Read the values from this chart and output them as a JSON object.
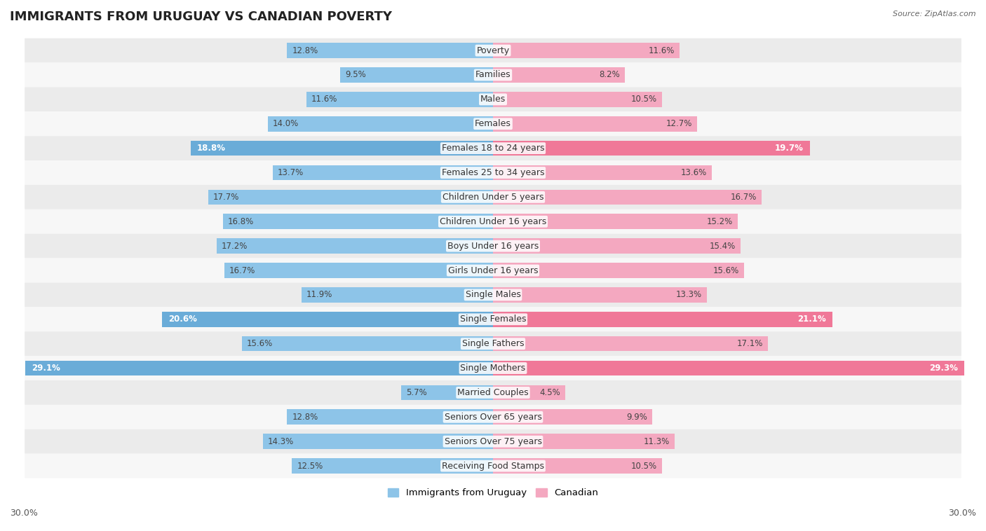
{
  "title": "IMMIGRANTS FROM URUGUAY VS CANADIAN POVERTY",
  "source": "Source: ZipAtlas.com",
  "categories": [
    "Poverty",
    "Families",
    "Males",
    "Females",
    "Females 18 to 24 years",
    "Females 25 to 34 years",
    "Children Under 5 years",
    "Children Under 16 years",
    "Boys Under 16 years",
    "Girls Under 16 years",
    "Single Males",
    "Single Females",
    "Single Fathers",
    "Single Mothers",
    "Married Couples",
    "Seniors Over 65 years",
    "Seniors Over 75 years",
    "Receiving Food Stamps"
  ],
  "uruguay_values": [
    12.8,
    9.5,
    11.6,
    14.0,
    18.8,
    13.7,
    17.7,
    16.8,
    17.2,
    16.7,
    11.9,
    20.6,
    15.6,
    29.1,
    5.7,
    12.8,
    14.3,
    12.5
  ],
  "canadian_values": [
    11.6,
    8.2,
    10.5,
    12.7,
    19.7,
    13.6,
    16.7,
    15.2,
    15.4,
    15.6,
    13.3,
    21.1,
    17.1,
    29.3,
    4.5,
    9.9,
    11.3,
    10.5
  ],
  "uruguay_color": "#8DC4E8",
  "canadian_color": "#F4A8C0",
  "uruguay_highlight_color": "#6AACD8",
  "canadian_highlight_color": "#F07898",
  "highlight_rows": [
    4,
    11,
    13
  ],
  "xlim": 30.0,
  "background_color": "#ffffff",
  "row_bg_even": "#ebebeb",
  "row_bg_odd": "#f7f7f7",
  "legend_labels": [
    "Immigrants from Uruguay",
    "Canadian"
  ],
  "bar_height": 0.62,
  "title_fontsize": 13,
  "label_fontsize": 9,
  "value_fontsize": 8.5,
  "axis_label_fontsize": 9
}
